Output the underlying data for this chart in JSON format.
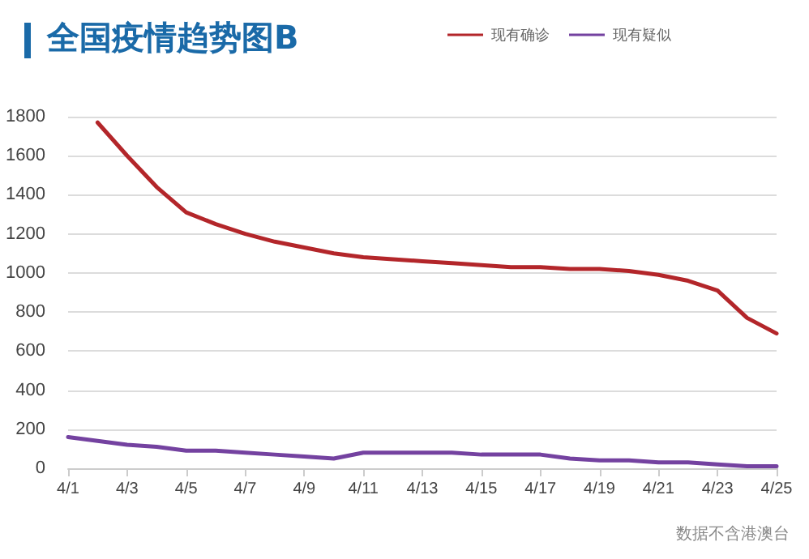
{
  "chart_data": {
    "type": "line",
    "title": "全国疫情趋势图B",
    "categories": [
      "4/1",
      null,
      "4/3",
      null,
      "4/5",
      null,
      "4/7",
      null,
      "4/9",
      null,
      "4/11",
      null,
      "4/13",
      null,
      "4/15",
      null,
      "4/17",
      null,
      "4/19",
      null,
      "4/21",
      null,
      "4/23",
      null,
      "4/25"
    ],
    "series": [
      {
        "name": "现有确诊",
        "color": "#b3262a",
        "values": [
          null,
          1770,
          1600,
          1440,
          1310,
          1250,
          1200,
          1160,
          1130,
          1100,
          1080,
          1070,
          1060,
          1050,
          1040,
          1030,
          1030,
          1020,
          1020,
          1010,
          990,
          960,
          910,
          770,
          690
        ]
      },
      {
        "name": "现有疑似",
        "color": "#7442a0",
        "values": [
          160,
          140,
          120,
          110,
          90,
          90,
          80,
          70,
          60,
          50,
          80,
          80,
          80,
          80,
          70,
          70,
          70,
          50,
          40,
          40,
          30,
          30,
          20,
          10,
          10
        ]
      }
    ],
    "ylim": [
      0,
      1800
    ],
    "yticks": [
      0,
      200,
      400,
      600,
      800,
      1000,
      1200,
      1400,
      1600,
      1800
    ],
    "grid": "y",
    "legend": "top right",
    "marker": "none",
    "line_style": "solid",
    "annotations": [
      "数据不含港澳台"
    ]
  }
}
